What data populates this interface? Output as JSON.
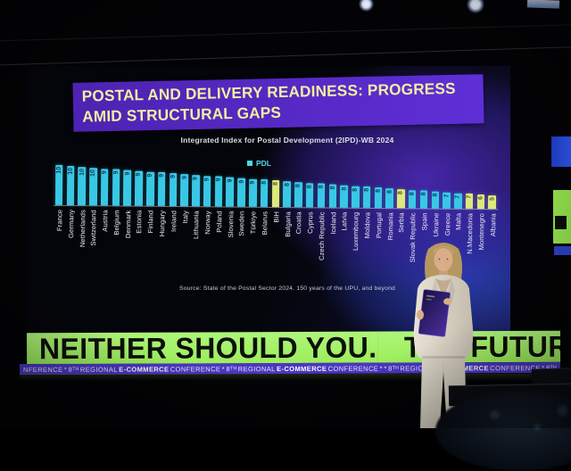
{
  "slide": {
    "title_line1": "POSTAL AND DELIVERY READINESS: PROGRESS",
    "title_line2": "AMID STRUCTURAL GAPS",
    "source": "Source: State of the Postal Sector 2024. 150 years of the UPU, and beyond"
  },
  "chart_data": {
    "type": "bar",
    "title": "Integrated Index for Postal Development (2IPD)-WB 2024",
    "legend": [
      {
        "label": "PDL",
        "color": "#49d6ea"
      }
    ],
    "legend_position": "top-center",
    "ylim": [
      0,
      10
    ],
    "grid": false,
    "categories": [
      "France",
      "Germany",
      "Netherlands",
      "Switzerland",
      "Austria",
      "Belgium",
      "Denmark",
      "Estonia",
      "Finland",
      "Hungary",
      "Ireland",
      "Italy",
      "Lithuania",
      "Norway",
      "Poland",
      "Slovenia",
      "Sweden",
      "Türkiye",
      "Belarus",
      "BiH",
      "Bulgaria",
      "Croatia",
      "Cyprus",
      "Czech Republic",
      "Iceland",
      "Latvia",
      "Luxembourg",
      "Moldova",
      "Portugal",
      "Romania",
      "Serbia",
      "Slovak Republic",
      "Spain",
      "Ukraine",
      "Greece",
      "Malta",
      "N.Macedonia",
      "Montenegro",
      "Albania"
    ],
    "values": [
      10,
      10,
      10,
      10,
      9,
      9,
      9,
      9,
      9,
      9,
      9,
      9,
      9,
      9,
      9,
      9,
      9,
      9,
      8,
      8,
      8,
      8,
      8,
      8,
      8,
      8,
      8,
      8,
      8,
      8,
      8,
      8,
      8,
      8,
      7,
      7,
      7,
      6,
      5
    ],
    "bar_color": "#38c8e6",
    "highlight_color": "#dde97c",
    "highlight_indices": [
      19,
      30,
      36,
      37,
      38
    ],
    "highlighted_categories": [
      "BiH",
      "Serbia",
      "N.Macedonia",
      "Montenegro",
      "Albania"
    ]
  },
  "banner": {
    "text_left": "NEITHER SHOULD YOU.",
    "text_right": "THE FUTUR",
    "bg": "#a6f368"
  },
  "ticker": {
    "bg": "#4a37c0",
    "segments": [
      {
        "t": "NFERENCE",
        "b": false
      },
      {
        "t": "*",
        "b": false
      },
      {
        "t": "8ᵀᴴ",
        "b": false
      },
      {
        "t": "REGIONAL",
        "b": false
      },
      {
        "t": "E-COMMERCE",
        "b": true
      },
      {
        "t": "CONFERENCE",
        "b": false
      },
      {
        "t": "*",
        "b": false
      },
      {
        "t": "8ᵀᴴ",
        "b": false
      },
      {
        "t": "REGIONAL",
        "b": false
      },
      {
        "t": "E-COMMERCE",
        "b": true
      },
      {
        "t": "CONFERENCE",
        "b": false
      },
      {
        "t": "*",
        "b": false
      },
      {
        "t": "*",
        "b": false
      },
      {
        "t": "8ᵀᴴ",
        "b": false
      },
      {
        "t": "REGIONAL",
        "b": false
      },
      {
        "t": "E-COMMERCE",
        "b": true
      },
      {
        "t": "CONFERENCE",
        "b": false
      },
      {
        "t": "*",
        "b": false
      },
      {
        "t": "8ᵀᴴ",
        "b": false
      }
    ]
  },
  "colors": {
    "slide_title_bg": "#5a2bc8",
    "slide_title_text": "#eeefa2",
    "screen_glow_purple": "#3b2a9e",
    "screen_glow_blue": "#2c46c0",
    "banner_text": "#0d0f0b"
  }
}
